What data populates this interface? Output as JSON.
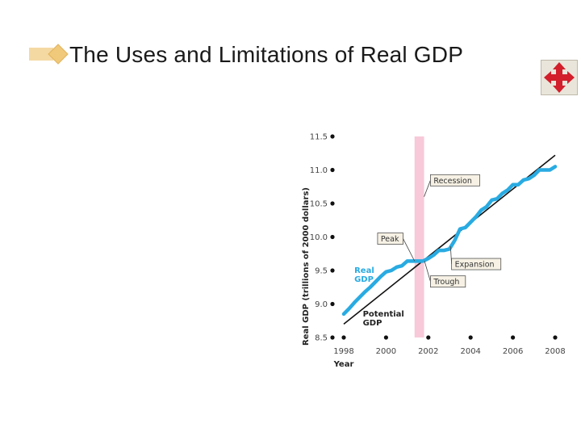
{
  "slide": {
    "title": "The Uses and Limitations of Real GDP",
    "nav_icon": "four-way-arrow-icon",
    "accent_color": "#f5d9a3",
    "nav_icon_color": "#d21f2b"
  },
  "chart_data": {
    "type": "line",
    "ylabel": "Real GDP (trillions of 2000 dollars)",
    "xlabel": "Year",
    "xlim": [
      1998,
      2008
    ],
    "ylim": [
      8.5,
      11.5
    ],
    "x_ticks": [
      "1998",
      "2000",
      "2002",
      "2004",
      "2006",
      "2008"
    ],
    "y_ticks": [
      "8.5",
      "9.0",
      "9.5",
      "10.0",
      "10.5",
      "11.0",
      "11.5"
    ],
    "grid": false,
    "series": [
      {
        "name": "Real GDP",
        "color": "#29abe2",
        "x": [
          1998,
          1998.25,
          1998.5,
          1998.75,
          1999,
          1999.25,
          1999.5,
          1999.75,
          2000,
          2000.25,
          2000.5,
          2000.75,
          2001,
          2001.25,
          2001.5,
          2001.75,
          2002,
          2002.25,
          2002.5,
          2002.75,
          2003,
          2003.25,
          2003.5,
          2003.75,
          2004,
          2004.25,
          2004.5,
          2004.75,
          2005,
          2005.25,
          2005.5,
          2005.75,
          2006,
          2006.25,
          2006.5,
          2006.75,
          2007,
          2007.25,
          2007.5,
          2007.75,
          2008
        ],
        "values": [
          8.85,
          8.93,
          9.02,
          9.1,
          9.18,
          9.25,
          9.33,
          9.41,
          9.48,
          9.5,
          9.55,
          9.57,
          9.64,
          9.64,
          9.64,
          9.64,
          9.68,
          9.73,
          9.8,
          9.8,
          9.82,
          9.95,
          10.12,
          10.14,
          10.22,
          10.3,
          10.4,
          10.45,
          10.55,
          10.57,
          10.65,
          10.7,
          10.78,
          10.78,
          10.85,
          10.87,
          10.92,
          11.0,
          11.0,
          11.0,
          11.05
        ]
      },
      {
        "name": "Potential GDP",
        "color": "#111111",
        "x": [
          1998,
          2008
        ],
        "values": [
          8.7,
          11.22
        ]
      }
    ],
    "shaded_regions": [
      {
        "label": "Recession",
        "x_start": 2001.35,
        "x_end": 2001.8,
        "color": "#f7c9d9"
      }
    ],
    "annotations": [
      {
        "text": "Recession"
      },
      {
        "text": "Peak"
      },
      {
        "text": "Expansion"
      },
      {
        "text": "Trough"
      }
    ]
  }
}
